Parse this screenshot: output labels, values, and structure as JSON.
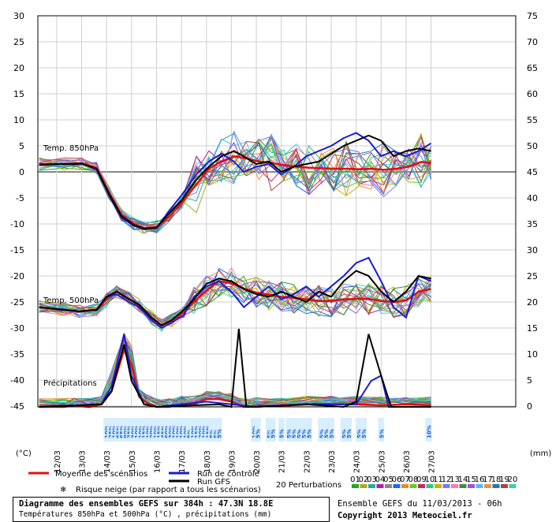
{
  "chart_data": {
    "type": "line",
    "title": "Diagramme des ensembles GEFS sur 384h : 47.3N 18.8E",
    "subtitle": "Températures 850hPa et 500hPa (°C) , précipitations (mm)",
    "left_axis": {
      "unit": "(°C)",
      "ticks": [
        30,
        25,
        20,
        15,
        10,
        5,
        0,
        -5,
        -10,
        -15,
        -20,
        -25,
        -30,
        -35,
        -40,
        -45
      ]
    },
    "right_axis": {
      "unit": "(mm)",
      "ticks": [
        75,
        70,
        65,
        60,
        55,
        50,
        45,
        40,
        35,
        30,
        25,
        20,
        15,
        10,
        5,
        0
      ]
    },
    "dates": [
      "12/03",
      "13/03",
      "14/03",
      "15/03",
      "16/03",
      "17/03",
      "18/03",
      "19/03",
      "20/03",
      "21/03",
      "22/03",
      "23/03",
      "24/03",
      "25/03",
      "26/03",
      "27/03"
    ],
    "panel_labels": {
      "t850": "Temp. 850hPa",
      "t500": "Temp. 500hPa",
      "precip": "Précipitations"
    },
    "series": [
      {
        "name": "Moyenne des scénarios",
        "color": "#e01010",
        "t850": [
          [
            11.3,
            1.5
          ],
          [
            12.3,
            1.5
          ],
          [
            13.0,
            1.6
          ],
          [
            13.6,
            0.8
          ],
          [
            14.1,
            -4
          ],
          [
            14.6,
            -8.3
          ],
          [
            15.1,
            -10
          ],
          [
            15.5,
            -10.8
          ],
          [
            16.0,
            -10.6
          ],
          [
            16.5,
            -8.6
          ],
          [
            17.0,
            -6
          ],
          [
            17.6,
            -2.4
          ],
          [
            18.1,
            0.6
          ],
          [
            18.6,
            2
          ],
          [
            19.1,
            3
          ],
          [
            19.6,
            2.6
          ],
          [
            20.1,
            2
          ],
          [
            20.6,
            1.7
          ],
          [
            21.1,
            1.3
          ],
          [
            21.6,
            1
          ],
          [
            22.1,
            0.8
          ],
          [
            22.6,
            0.7
          ],
          [
            23.1,
            0.6
          ],
          [
            23.6,
            0.6
          ],
          [
            24.1,
            0.5
          ],
          [
            24.6,
            0.6
          ],
          [
            25.1,
            0.4
          ],
          [
            25.6,
            0.6
          ],
          [
            26.1,
            1
          ],
          [
            26.6,
            1.9
          ],
          [
            27.0,
            1.7
          ]
        ],
        "t500": [
          [
            11.3,
            -26
          ],
          [
            12.3,
            -26.5
          ],
          [
            12.9,
            -26.8
          ],
          [
            13.6,
            -26.5
          ],
          [
            14.0,
            -24.5
          ],
          [
            14.4,
            -23
          ],
          [
            14.9,
            -24.4
          ],
          [
            15.3,
            -25.6
          ],
          [
            15.8,
            -28
          ],
          [
            16.2,
            -29.5
          ],
          [
            16.6,
            -28.6
          ],
          [
            17.1,
            -27
          ],
          [
            17.5,
            -25
          ],
          [
            18.0,
            -22.8
          ],
          [
            18.5,
            -21
          ],
          [
            19.0,
            -21.4
          ],
          [
            19.5,
            -22.4
          ],
          [
            20.0,
            -23.2
          ],
          [
            20.5,
            -23.6
          ],
          [
            21.0,
            -24
          ],
          [
            21.5,
            -24.2
          ],
          [
            22.0,
            -24.5
          ],
          [
            22.5,
            -24.8
          ],
          [
            23.0,
            -24.8
          ],
          [
            23.5,
            -24.5
          ],
          [
            24.0,
            -24.4
          ],
          [
            24.5,
            -24.4
          ],
          [
            25.0,
            -24.8
          ],
          [
            25.5,
            -25
          ],
          [
            26.0,
            -24.7
          ],
          [
            26.5,
            -23
          ],
          [
            27.0,
            -22.5
          ]
        ],
        "precip": [
          [
            11.3,
            0
          ],
          [
            12.3,
            0
          ],
          [
            12.7,
            0.3
          ],
          [
            13.3,
            0
          ],
          [
            13.8,
            0.5
          ],
          [
            14.2,
            3
          ],
          [
            14.7,
            11
          ],
          [
            15.0,
            8
          ],
          [
            15.3,
            2
          ],
          [
            15.6,
            0.8
          ],
          [
            16.0,
            0
          ],
          [
            16.5,
            0
          ],
          [
            17.0,
            0.5
          ],
          [
            17.5,
            0.5
          ],
          [
            18.0,
            1.5
          ],
          [
            18.5,
            1.5
          ],
          [
            19.0,
            1
          ],
          [
            19.5,
            0
          ],
          [
            20.0,
            0.2
          ],
          [
            21.0,
            0.2
          ],
          [
            22.0,
            0.5
          ],
          [
            23.0,
            0.5
          ],
          [
            24.0,
            0.5
          ],
          [
            25.0,
            0.3
          ],
          [
            26.0,
            0.5
          ],
          [
            27.0,
            0.3
          ]
        ]
      },
      {
        "name": "Run de contrôle",
        "color": "#1a1ad8",
        "t850": [
          [
            11.3,
            1.4
          ],
          [
            12.3,
            1.5
          ],
          [
            13.0,
            1.6
          ],
          [
            13.6,
            0.5
          ],
          [
            14.1,
            -4.5
          ],
          [
            14.6,
            -8.8
          ],
          [
            15.1,
            -10.4
          ],
          [
            15.5,
            -11
          ],
          [
            16.0,
            -10.8
          ],
          [
            16.5,
            -7.5
          ],
          [
            17.0,
            -4.5
          ],
          [
            17.6,
            -0.5
          ],
          [
            18.1,
            2
          ],
          [
            18.6,
            3.5
          ],
          [
            19.1,
            2
          ],
          [
            19.5,
            0
          ],
          [
            20.0,
            1
          ],
          [
            20.5,
            1.5
          ],
          [
            21.0,
            -0.5
          ],
          [
            21.5,
            1
          ],
          [
            22.0,
            3
          ],
          [
            22.5,
            4
          ],
          [
            23.0,
            5
          ],
          [
            23.5,
            6.5
          ],
          [
            24.0,
            7.5
          ],
          [
            24.5,
            6
          ],
          [
            25.0,
            3
          ],
          [
            25.5,
            4
          ],
          [
            26.0,
            3
          ],
          [
            26.5,
            4
          ],
          [
            27.0,
            5.5
          ]
        ],
        "t500": [
          [
            11.3,
            -26
          ],
          [
            12.3,
            -26.5
          ],
          [
            12.9,
            -26.8
          ],
          [
            13.6,
            -26.5
          ],
          [
            14.0,
            -24
          ],
          [
            14.4,
            -23.5
          ],
          [
            14.9,
            -25
          ],
          [
            15.3,
            -26
          ],
          [
            15.8,
            -28.5
          ],
          [
            16.2,
            -30
          ],
          [
            16.6,
            -29
          ],
          [
            17.1,
            -27.5
          ],
          [
            17.5,
            -24
          ],
          [
            18.0,
            -22
          ],
          [
            18.5,
            -21
          ],
          [
            19.0,
            -23
          ],
          [
            19.5,
            -26
          ],
          [
            20.0,
            -24
          ],
          [
            20.5,
            -22
          ],
          [
            21.0,
            -24.5
          ],
          [
            21.5,
            -23.5
          ],
          [
            22.0,
            -22
          ],
          [
            22.5,
            -24
          ],
          [
            23.0,
            -22
          ],
          [
            23.5,
            -20
          ],
          [
            24.0,
            -17.5
          ],
          [
            24.5,
            -16.5
          ],
          [
            25.0,
            -21
          ],
          [
            25.5,
            -26
          ],
          [
            26.0,
            -28
          ],
          [
            26.5,
            -20
          ],
          [
            27.0,
            -21
          ]
        ],
        "precip": [
          [
            11.3,
            0
          ],
          [
            13.8,
            0.5
          ],
          [
            14.2,
            4
          ],
          [
            14.7,
            14
          ],
          [
            15.0,
            6
          ],
          [
            15.5,
            0.5
          ],
          [
            16.0,
            0
          ],
          [
            18.0,
            1
          ],
          [
            19.0,
            0.5
          ],
          [
            20.0,
            0
          ],
          [
            22.0,
            0.5
          ],
          [
            24.0,
            0.5
          ],
          [
            24.6,
            5
          ],
          [
            25.0,
            6
          ],
          [
            25.3,
            0
          ],
          [
            27.0,
            0
          ]
        ]
      },
      {
        "name": "Run GFS",
        "color": "#000000",
        "t850": [
          [
            11.3,
            1.4
          ],
          [
            12.3,
            1.5
          ],
          [
            13.0,
            1.6
          ],
          [
            13.6,
            0.6
          ],
          [
            14.1,
            -4.2
          ],
          [
            14.6,
            -8.5
          ],
          [
            15.1,
            -10.2
          ],
          [
            15.5,
            -10.9
          ],
          [
            16.0,
            -10.7
          ],
          [
            16.5,
            -8
          ],
          [
            17.0,
            -5.5
          ],
          [
            17.6,
            -1.5
          ],
          [
            18.1,
            1
          ],
          [
            18.6,
            3
          ],
          [
            19.1,
            4
          ],
          [
            19.5,
            3
          ],
          [
            20.0,
            1.5
          ],
          [
            20.5,
            2
          ],
          [
            21.0,
            0
          ],
          [
            21.5,
            1
          ],
          [
            22.0,
            1.5
          ],
          [
            22.5,
            2
          ],
          [
            23.0,
            3.5
          ],
          [
            23.5,
            5
          ],
          [
            24.0,
            6
          ],
          [
            24.5,
            7
          ],
          [
            25.0,
            6
          ],
          [
            25.5,
            3
          ],
          [
            26.0,
            4
          ],
          [
            26.5,
            4.5
          ],
          [
            27.0,
            4
          ]
        ],
        "t500": [
          [
            11.3,
            -26
          ],
          [
            12.3,
            -26.5
          ],
          [
            12.9,
            -26.8
          ],
          [
            13.6,
            -26.5
          ],
          [
            14.0,
            -24
          ],
          [
            14.4,
            -23
          ],
          [
            14.9,
            -24.5
          ],
          [
            15.3,
            -25.5
          ],
          [
            15.8,
            -28
          ],
          [
            16.2,
            -29.5
          ],
          [
            16.6,
            -28.5
          ],
          [
            17.1,
            -26.5
          ],
          [
            17.5,
            -24.5
          ],
          [
            18.0,
            -21.5
          ],
          [
            18.5,
            -20.5
          ],
          [
            19.0,
            -21
          ],
          [
            19.5,
            -22.5
          ],
          [
            20.0,
            -23.5
          ],
          [
            20.5,
            -24
          ],
          [
            21.0,
            -23
          ],
          [
            21.5,
            -24
          ],
          [
            22.0,
            -25
          ],
          [
            22.5,
            -23
          ],
          [
            23.0,
            -24
          ],
          [
            23.5,
            -21
          ],
          [
            24.0,
            -19
          ],
          [
            24.5,
            -20
          ],
          [
            25.0,
            -23
          ],
          [
            25.5,
            -25
          ],
          [
            26.0,
            -23
          ],
          [
            26.5,
            -20
          ],
          [
            27.0,
            -20.5
          ]
        ],
        "precip": [
          [
            11.3,
            0
          ],
          [
            13.8,
            0.5
          ],
          [
            14.2,
            3
          ],
          [
            14.7,
            12
          ],
          [
            15.0,
            5
          ],
          [
            15.5,
            0.5
          ],
          [
            16.0,
            0
          ],
          [
            18.5,
            0.5
          ],
          [
            19.0,
            0
          ],
          [
            19.3,
            15
          ],
          [
            19.6,
            0
          ],
          [
            20.0,
            0
          ],
          [
            22.0,
            0.5
          ],
          [
            23.5,
            0
          ],
          [
            24.0,
            1
          ],
          [
            24.5,
            14
          ],
          [
            25.0,
            6
          ],
          [
            25.4,
            0
          ],
          [
            27.0,
            0
          ]
        ]
      }
    ],
    "snow_risk": {
      "positions": [
        14.0,
        14.15,
        14.3,
        14.45,
        14.6,
        14.75,
        14.9,
        15.05,
        15.2,
        15.35,
        15.5,
        15.65,
        15.8,
        15.95,
        16.1,
        16.25,
        16.4,
        16.55,
        16.7,
        16.85,
        17.0,
        17.15,
        17.3,
        17.45,
        17.6,
        17.75,
        17.9,
        18.05,
        18.2,
        18.35,
        18.5,
        19.9,
        20.05,
        20.5,
        20.65,
        21.0,
        21.3,
        21.5,
        21.7,
        21.9,
        22.1,
        22.6,
        22.8,
        23.0,
        23.5,
        23.7,
        24.1,
        24.3,
        25.0,
        26.9
      ],
      "labels": [
        "10%",
        "25%",
        "10%",
        "65%",
        "65%",
        "90%",
        "75%",
        "30%",
        "10%",
        "10%",
        "15%",
        "10%",
        "20%",
        "10%",
        "15%",
        "45%",
        "60%",
        "30%",
        "10%",
        "10%",
        "10%",
        "10%",
        "5%",
        "10%",
        "15%",
        "20%",
        "10%",
        "15%",
        "5%",
        "5%",
        "5%",
        "10%",
        "5%",
        "5%",
        "5%",
        "5%",
        "5%",
        "5%",
        "5%",
        "5%",
        "5%",
        "5%",
        "5%",
        "5%",
        "5%",
        "5%",
        "5%",
        "5%",
        "5%",
        "10%"
      ]
    }
  },
  "legend": {
    "mean": "Moyenne des scénarios",
    "control": "Run de contrôle",
    "gfs": "Run GFS",
    "snow": "Risque neige (par rapport a tous les scénarios)",
    "perturb": "20 Perturbations",
    "perturb_nums": [
      "01",
      "02",
      "03",
      "04",
      "05",
      "06",
      "07",
      "08",
      "09",
      "10",
      "11",
      "12",
      "13",
      "14",
      "15",
      "16",
      "17",
      "18",
      "19",
      "20"
    ],
    "perturb_colors": [
      "#22aa22",
      "#aaaa22",
      "#22aaaa",
      "#aa22aa",
      "#888888",
      "#2266ee",
      "#ee8822",
      "#66cc22",
      "#cc2266",
      "#22cc88",
      "#bbbb00",
      "#7777ff",
      "#ff77aa",
      "#448844",
      "#9955dd",
      "#55bbee",
      "#dd9944",
      "#2277aa",
      "#aa4444",
      "#44ccaa"
    ]
  },
  "footer": {
    "title": "Diagramme des ensembles GEFS sur 384h : 47.3N 18.8E",
    "subtitle": "Températures 850hPa et 500hPa (°C) , précipitations (mm)",
    "run": "Ensemble GEFS du 11/03/2013 - 06h",
    "copyright": "Copyright 2013 Meteociel.fr"
  }
}
